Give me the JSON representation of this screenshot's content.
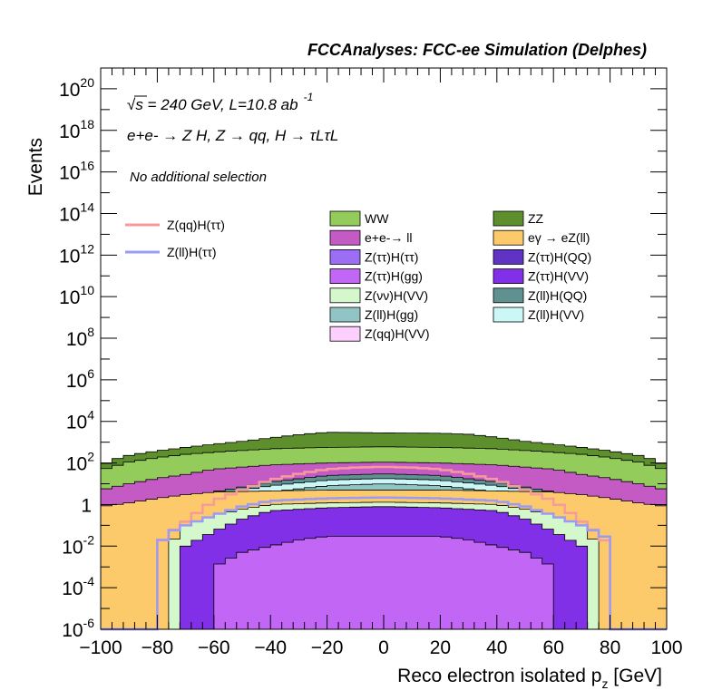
{
  "header": {
    "title": "FCCAnalyses: FCC-ee Simulation (Delphes)"
  },
  "annotations": {
    "energy_lumi": {
      "prefix": "√s = 240 GeV, L=10.8 ab",
      "sup": "-1"
    },
    "process": "e+e- → Z H, Z → qq, H → τLτL",
    "selection": "No additional selection"
  },
  "axes": {
    "xlabel_main": "Reco electron isolated p",
    "xlabel_sub": "z",
    "xlabel_unit": " [GeV]",
    "ylabel": "Events"
  },
  "legend": {
    "signals": [
      "Z(qq)H(ττ)",
      "Z(ll)H(ττ)"
    ],
    "backgrounds": [
      "WW",
      "ZZ",
      "e+e-→ ll",
      "eγ → eZ(ll)",
      "Z(ττ)H(ττ)",
      "Z(ττ)H(QQ)",
      "Z(ττ)H(gg)",
      "Z(ττ)H(VV)",
      "Z(νν)H(VV)",
      "Z(ll)H(QQ)",
      "Z(ll)H(gg)",
      "Z(ll)H(VV)",
      "Z(qq)H(VV)"
    ]
  },
  "colors": {
    "WW": "#94cc5c",
    "ZZ": "#5d8f2d",
    "ee_ll": "#c45ac4",
    "egamma": "#fcc96b",
    "ztt_htt": "#9b6ef5",
    "ztt_hqq": "#5f34c4",
    "ztt_hgg": "#c266f5",
    "ztt_hvv": "#8230e8",
    "znn_hvv": "#d4f7cc",
    "zll_hqq": "#5f9191",
    "zll_hgg": "#91c4c4",
    "zll_hvv": "#ccf7f7",
    "zqq_hvv": "#fccffc",
    "sig_qq": "#f59b9b",
    "sig_ll": "#9b9bf5"
  },
  "chart_data": {
    "type": "area",
    "title": "FCCAnalyses: FCC-ee Simulation (Delphes)",
    "xlabel": "Reco electron isolated pz [GeV]",
    "ylabel": "Events",
    "xlim": [
      -100,
      100
    ],
    "ylim": [
      1e-06,
      1e+21
    ],
    "yscale": "log",
    "x_ticks": [
      -100,
      -80,
      -60,
      -40,
      -20,
      0,
      20,
      40,
      60,
      80,
      100
    ],
    "x_tick_labels": [
      "−100",
      "−80",
      "−60",
      "−40",
      "−20",
      "0",
      "20",
      "40",
      "60",
      "80",
      "100"
    ],
    "y_tick_labels": [
      {
        "base": "10",
        "exp": "-6",
        "value": 1e-06
      },
      {
        "base": "10",
        "exp": "-4",
        "value": 0.0001
      },
      {
        "base": "10",
        "exp": "-2",
        "value": 0.01
      },
      {
        "base": "1",
        "exp": "",
        "value": 1
      },
      {
        "base": "10",
        "exp": "2",
        "value": 100.0
      },
      {
        "base": "10",
        "exp": "4",
        "value": 10000.0
      },
      {
        "base": "10",
        "exp": "6",
        "value": 1000000.0
      },
      {
        "base": "10",
        "exp": "8",
        "value": 100000000.0
      },
      {
        "base": "10",
        "exp": "10",
        "value": 10000000000.0
      },
      {
        "base": "10",
        "exp": "12",
        "value": 1000000000000.0
      },
      {
        "base": "10",
        "exp": "14",
        "value": 100000000000000.0
      },
      {
        "base": "10",
        "exp": "16",
        "value": 1e+16
      },
      {
        "base": "10",
        "exp": "18",
        "value": 1e+18
      },
      {
        "base": "10",
        "exp": "20",
        "value": 1e+20
      }
    ],
    "stack_envelopes": [
      {
        "name": "ZZ",
        "key": "ZZ",
        "points": [
          [
            -100,
            70
          ],
          [
            -95,
            150
          ],
          [
            -90,
            230
          ],
          [
            -85,
            300
          ],
          [
            -80,
            380
          ],
          [
            -70,
            560
          ],
          [
            -60,
            800
          ],
          [
            -50,
            1100
          ],
          [
            -40,
            1600
          ],
          [
            -30,
            2300
          ],
          [
            -20,
            3000
          ],
          [
            0,
            2800
          ],
          [
            20,
            2700
          ],
          [
            30,
            2400
          ],
          [
            40,
            1700
          ],
          [
            50,
            1100
          ],
          [
            60,
            800
          ],
          [
            70,
            560
          ],
          [
            80,
            380
          ],
          [
            90,
            230
          ],
          [
            95,
            150
          ],
          [
            100,
            70
          ]
        ]
      },
      {
        "name": "WW",
        "key": "WW",
        "points": [
          [
            -100,
            45
          ],
          [
            -90,
            110
          ],
          [
            -80,
            180
          ],
          [
            -70,
            260
          ],
          [
            -60,
            330
          ],
          [
            -40,
            480
          ],
          [
            -20,
            560
          ],
          [
            0,
            600
          ],
          [
            20,
            560
          ],
          [
            40,
            480
          ],
          [
            60,
            330
          ],
          [
            70,
            260
          ],
          [
            80,
            180
          ],
          [
            90,
            110
          ],
          [
            100,
            45
          ]
        ]
      },
      {
        "name": "e+e-→ ll",
        "key": "ee_ll",
        "points": [
          [
            -100,
            5
          ],
          [
            -90,
            10
          ],
          [
            -80,
            18
          ],
          [
            -70,
            28
          ],
          [
            -60,
            50
          ],
          [
            -40,
            80
          ],
          [
            -20,
            100
          ],
          [
            0,
            110
          ],
          [
            20,
            100
          ],
          [
            40,
            80
          ],
          [
            60,
            50
          ],
          [
            70,
            28
          ],
          [
            80,
            18
          ],
          [
            90,
            10
          ],
          [
            100,
            5
          ]
        ]
      },
      {
        "name": "Z(ll)H(QQ)",
        "key": "zll_hqq",
        "points": [
          [
            -90,
            0.5
          ],
          [
            -80,
            0.8
          ],
          [
            -70,
            1.5
          ],
          [
            -60,
            4
          ],
          [
            -40,
            12
          ],
          [
            -20,
            25
          ],
          [
            0,
            30
          ],
          [
            20,
            25
          ],
          [
            40,
            12
          ],
          [
            60,
            4
          ],
          [
            70,
            1.5
          ],
          [
            80,
            0.8
          ],
          [
            90,
            0.5
          ]
        ]
      },
      {
        "name": "Z(ll)H(VV)",
        "key": "zll_hvv",
        "points": [
          [
            -76,
            0.4
          ],
          [
            -70,
            1
          ],
          [
            -60,
            3
          ],
          [
            -40,
            8
          ],
          [
            -20,
            15
          ],
          [
            0,
            18
          ],
          [
            20,
            15
          ],
          [
            40,
            8
          ],
          [
            60,
            3
          ],
          [
            70,
            1
          ],
          [
            76,
            0.4
          ]
        ]
      },
      {
        "name": "Z(ll)H(gg)",
        "key": "zll_hgg",
        "points": [
          [
            -76,
            0.2
          ],
          [
            -70,
            0.5
          ],
          [
            -60,
            1.5
          ],
          [
            -40,
            4
          ],
          [
            -20,
            8
          ],
          [
            0,
            10
          ],
          [
            20,
            8
          ],
          [
            40,
            4
          ],
          [
            60,
            1.5
          ],
          [
            70,
            0.5
          ],
          [
            76,
            0.2
          ]
        ]
      },
      {
        "name": "eγ → eZ(ll)",
        "key": "egamma",
        "points": [
          [
            -100,
            0.8
          ],
          [
            -90,
            1.2
          ],
          [
            -80,
            2
          ],
          [
            -70,
            3
          ],
          [
            -60,
            4
          ],
          [
            -40,
            4.5
          ],
          [
            -20,
            5
          ],
          [
            0,
            5
          ],
          [
            20,
            5
          ],
          [
            40,
            4.5
          ],
          [
            60,
            4
          ],
          [
            70,
            3
          ],
          [
            80,
            2
          ],
          [
            90,
            1.2
          ],
          [
            100,
            0.8
          ]
        ]
      },
      {
        "name": "Z(νν)H(VV)",
        "key": "znn_hvv",
        "points": [
          [
            -76,
            0.01
          ],
          [
            -70,
            0.1
          ],
          [
            -60,
            0.3
          ],
          [
            -50,
            0.6
          ],
          [
            -40,
            1
          ],
          [
            -20,
            1.2
          ],
          [
            0,
            1.3
          ],
          [
            20,
            1.2
          ],
          [
            40,
            1
          ],
          [
            50,
            0.6
          ],
          [
            60,
            0.3
          ],
          [
            70,
            0.1
          ],
          [
            76,
            0.01
          ]
        ]
      },
      {
        "name": "Z(ττ)H(VV)",
        "key": "ztt_hvv",
        "points": [
          [
            -70,
            0.01
          ],
          [
            -60,
            0.05
          ],
          [
            -50,
            0.2
          ],
          [
            -40,
            0.5
          ],
          [
            -20,
            0.7
          ],
          [
            0,
            0.8
          ],
          [
            20,
            0.7
          ],
          [
            40,
            0.5
          ],
          [
            50,
            0.2
          ],
          [
            60,
            0.05
          ],
          [
            70,
            0.01
          ]
        ]
      },
      {
        "name": "Z(ττ)H(gg)",
        "key": "ztt_hgg",
        "points": [
          [
            -60,
            0.001
          ],
          [
            -50,
            0.005
          ],
          [
            -40,
            0.01
          ],
          [
            -30,
            0.02
          ],
          [
            -20,
            0.03
          ],
          [
            0,
            0.03
          ],
          [
            20,
            0.03
          ],
          [
            30,
            0.02
          ],
          [
            40,
            0.01
          ],
          [
            50,
            0.005
          ],
          [
            60,
            0.001
          ]
        ]
      }
    ],
    "signal_series": [
      {
        "name": "Z(qq)H(ττ)",
        "key": "sig_qq",
        "points": [
          [
            -80,
            0.01
          ],
          [
            -75,
            0.05
          ],
          [
            -70,
            0.15
          ],
          [
            -65,
            0.5
          ],
          [
            -60,
            1.5
          ],
          [
            -50,
            5
          ],
          [
            -40,
            15
          ],
          [
            -30,
            30
          ],
          [
            -20,
            50
          ],
          [
            -10,
            60
          ],
          [
            0,
            65
          ],
          [
            10,
            60
          ],
          [
            20,
            50
          ],
          [
            30,
            30
          ],
          [
            40,
            15
          ],
          [
            50,
            5
          ],
          [
            60,
            1.5
          ],
          [
            65,
            0.5
          ],
          [
            70,
            0.15
          ],
          [
            75,
            0.05
          ],
          [
            80,
            0.01
          ]
        ]
      },
      {
        "name": "Z(ll)H(ττ)",
        "key": "sig_ll",
        "points": [
          [
            -80,
            1e-06
          ],
          [
            -78,
            0.02
          ],
          [
            -75,
            0.05
          ],
          [
            -70,
            0.1
          ],
          [
            -60,
            0.3
          ],
          [
            -50,
            0.8
          ],
          [
            -40,
            1.5
          ],
          [
            -20,
            2
          ],
          [
            0,
            2.2
          ],
          [
            20,
            2
          ],
          [
            40,
            1.5
          ],
          [
            50,
            0.8
          ],
          [
            60,
            0.3
          ],
          [
            70,
            0.1
          ],
          [
            75,
            0.05
          ],
          [
            80,
            0.02
          ],
          [
            82,
            1e-06
          ]
        ]
      }
    ],
    "legend_position": "top-center",
    "grid": false
  }
}
